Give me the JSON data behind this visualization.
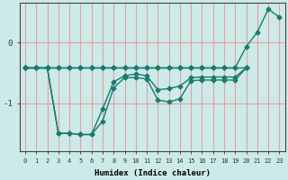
{
  "bg_color": "#cceae8",
  "grid_color": "#e8a0a0",
  "line_color": "#1a7a6e",
  "xlabel": "Humidex (Indice chaleur)",
  "yticks": [
    0,
    -1
  ],
  "xlim": [
    -0.5,
    23.5
  ],
  "ylim": [
    -1.8,
    0.65
  ],
  "series": {
    "line1_flat": {
      "x": [
        0,
        1,
        2,
        3,
        4,
        5,
        6,
        7,
        8,
        9,
        10,
        11,
        12,
        13,
        14,
        15,
        16,
        17,
        18,
        19,
        20
      ],
      "y": [
        -0.42,
        -0.42,
        -0.42,
        -0.42,
        -0.42,
        -0.42,
        -0.42,
        -0.42,
        -0.42,
        -0.42,
        -0.42,
        -0.42,
        -0.42,
        -0.42,
        -0.42,
        -0.42,
        -0.42,
        -0.42,
        -0.42,
        -0.42,
        -0.42
      ]
    },
    "line2_lower": {
      "x": [
        0,
        1,
        2,
        3,
        4,
        5,
        6,
        7,
        8,
        9,
        10,
        11,
        12,
        13,
        14,
        15,
        16,
        17,
        18,
        19,
        20
      ],
      "y": [
        -0.42,
        -0.42,
        -0.42,
        -1.5,
        -1.5,
        -1.52,
        -1.52,
        -1.3,
        -0.75,
        -0.58,
        -0.58,
        -0.6,
        -0.95,
        -0.98,
        -0.93,
        -0.63,
        -0.62,
        -0.62,
        -0.62,
        -0.62,
        -0.42
      ]
    },
    "line3_mid": {
      "x": [
        0,
        1,
        2,
        3,
        4,
        5,
        6,
        7,
        8,
        9,
        10,
        11,
        12,
        13,
        14,
        15,
        16,
        17,
        18,
        19,
        20
      ],
      "y": [
        -0.42,
        -0.42,
        -0.42,
        -1.5,
        -1.5,
        -1.52,
        -1.52,
        -1.1,
        -0.65,
        -0.55,
        -0.52,
        -0.55,
        -0.78,
        -0.76,
        -0.72,
        -0.58,
        -0.57,
        -0.57,
        -0.57,
        -0.57,
        -0.42
      ]
    },
    "line4_rise": {
      "x": [
        0,
        1,
        2,
        3,
        4,
        5,
        6,
        7,
        8,
        9,
        10,
        11,
        12,
        13,
        14,
        15,
        16,
        17,
        18,
        19,
        20,
        21,
        22,
        23
      ],
      "y": [
        -0.42,
        -0.42,
        -0.42,
        -0.42,
        -0.42,
        -0.42,
        -0.42,
        -0.42,
        -0.42,
        -0.42,
        -0.42,
        -0.42,
        -0.42,
        -0.42,
        -0.42,
        -0.42,
        -0.42,
        -0.42,
        -0.42,
        -0.42,
        -0.07,
        0.17,
        0.55,
        0.42
      ]
    }
  },
  "xtick_labels": [
    "0",
    "1",
    "2",
    "3",
    "4",
    "5",
    "6",
    "7",
    "8",
    "9",
    "10",
    "11",
    "12",
    "13",
    "14",
    "15",
    "16",
    "17",
    "18",
    "19",
    "20",
    "21",
    "22",
    "23"
  ],
  "marker_size": 2.5,
  "line_width": 1.0
}
